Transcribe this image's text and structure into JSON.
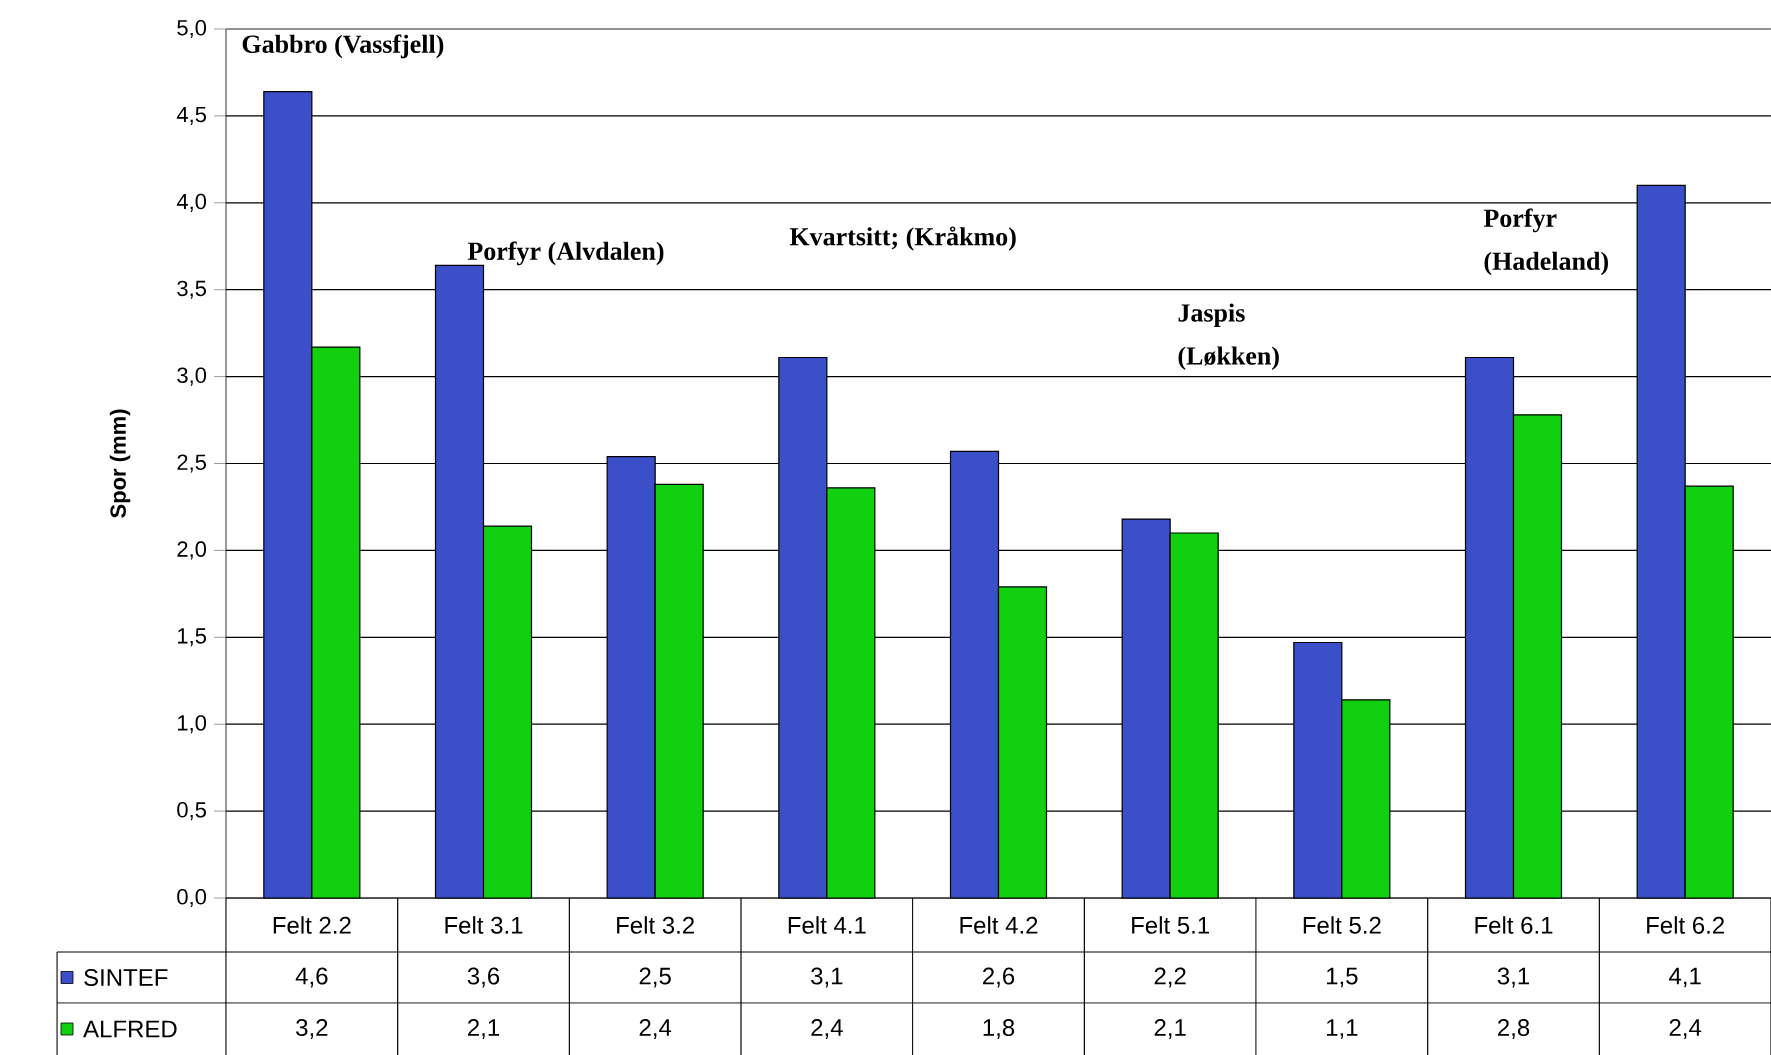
{
  "chart_data": {
    "type": "bar",
    "ylabel": "Spor (mm)",
    "categories": [
      "Felt 2.2",
      "Felt 3.1",
      "Felt 3.2",
      "Felt 4.1",
      "Felt 4.2",
      "Felt 5.1",
      "Felt 5.2",
      "Felt 6.1",
      "Felt 6.2"
    ],
    "series": [
      {
        "name": "SINTEF",
        "color": "#3a4fc8",
        "values": [
          4.64,
          3.64,
          2.54,
          3.11,
          2.57,
          2.18,
          1.47,
          3.11,
          4.1
        ],
        "value_labels": [
          "4,6",
          "3,6",
          "2,5",
          "3,1",
          "2,6",
          "2,2",
          "1,5",
          "3,1",
          "4,1"
        ]
      },
      {
        "name": "ALFRED",
        "color": "#10d010",
        "values": [
          3.17,
          2.14,
          2.38,
          2.36,
          1.79,
          2.1,
          1.14,
          2.78,
          2.37
        ],
        "value_labels": [
          "3,2",
          "2,1",
          "2,4",
          "2,4",
          "1,8",
          "2,1",
          "1,1",
          "2,8",
          "2,4"
        ]
      }
    ],
    "ylim": [
      0,
      5
    ],
    "yticks": [
      {
        "value": 0,
        "label": "0,0"
      },
      {
        "value": 0.5,
        "label": "0,5"
      },
      {
        "value": 1,
        "label": "1,0"
      },
      {
        "value": 1.5,
        "label": "1,5"
      },
      {
        "value": 2,
        "label": "2,0"
      },
      {
        "value": 2.5,
        "label": "2,5"
      },
      {
        "value": 3,
        "label": "3,0"
      },
      {
        "value": 3.5,
        "label": "3,5"
      },
      {
        "value": 4,
        "label": "4,0"
      },
      {
        "value": 4.5,
        "label": "4,5"
      },
      {
        "value": 5,
        "label": "5,0"
      }
    ],
    "grid": "y",
    "legend": "bottom",
    "annotations": [
      "Gabbro (Vassfjell)",
      "Porfyr (Alvdalen)",
      "Kvartsitt; (Kråkmo)",
      "Jaspis (Løkken)",
      "Porfyr (Hadeland)"
    ]
  }
}
